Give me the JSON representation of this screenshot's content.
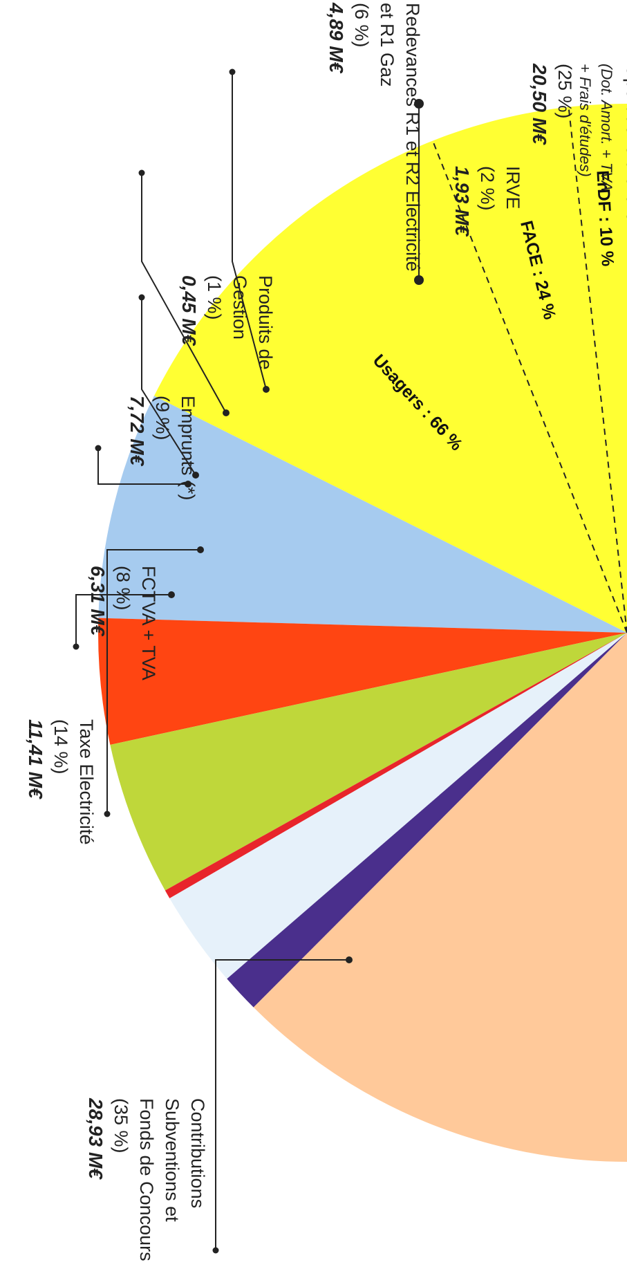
{
  "chart_data": {
    "type": "pie",
    "title": "",
    "orientation": "rotated 90 degrees counter-clockwise, half pie",
    "slices": [
      {
        "key": "contrib",
        "label_lines": [
          "Contributions",
          "Subventions et",
          "Fonds de Concours"
        ],
        "percent": "(35 %)",
        "amount": "28,93 M€",
        "value": 28.93,
        "color": "#FFFF33"
      },
      {
        "key": "taxe",
        "label_lines": [
          "Taxe Electricité"
        ],
        "percent": "(14 %)",
        "amount": "11,41 M€",
        "value": 11.41,
        "color": "#A6CBEF"
      },
      {
        "key": "fctva",
        "label_lines": [
          "FCTVA + TVA"
        ],
        "percent": "(8 %)",
        "amount": "6,31 M€",
        "value": 6.31,
        "color": "#FF4512"
      },
      {
        "key": "emprunts",
        "label_lines": [
          "Emprunts (*)"
        ],
        "percent": "(9 %)",
        "amount": "7,72 M€",
        "value": 7.72,
        "color": "#BFD73A"
      },
      {
        "key": "produits",
        "label_lines": [
          "Produits de",
          "Gestion"
        ],
        "percent": "(1 %)",
        "amount": "0,45 M€",
        "value": 0.45,
        "color": "#E8252B"
      },
      {
        "key": "redevances",
        "label_lines": [
          "Redevances R1 et R2 Electricité",
          "et R1 Gaz"
        ],
        "percent": "(6 %)",
        "amount": "4,89 M€",
        "value": 4.89,
        "color": "#E6F1FA"
      },
      {
        "key": "irve",
        "label_lines": [
          "IRVE"
        ],
        "percent": "(2 %)",
        "amount": "1,93 M€",
        "value": 1.93,
        "color": "#4A2F8C"
      },
      {
        "key": "ordre",
        "label_lines": [
          "Opérations d'Ordre"
        ],
        "note_lines": [
          "(Dot. Amort. + TVA",
          "+ Frais d'études)"
        ],
        "percent": "(25 %)",
        "amount": "20,50 M€",
        "value": 20.5,
        "color": "#FFC99A"
      }
    ],
    "contributions_breakdown": [
      {
        "label": "ErDF : 10 %",
        "percent": 10
      },
      {
        "label": "FACE : 24 %",
        "percent": 24
      },
      {
        "label": "Usagers : 66 %",
        "percent": 66
      }
    ]
  }
}
